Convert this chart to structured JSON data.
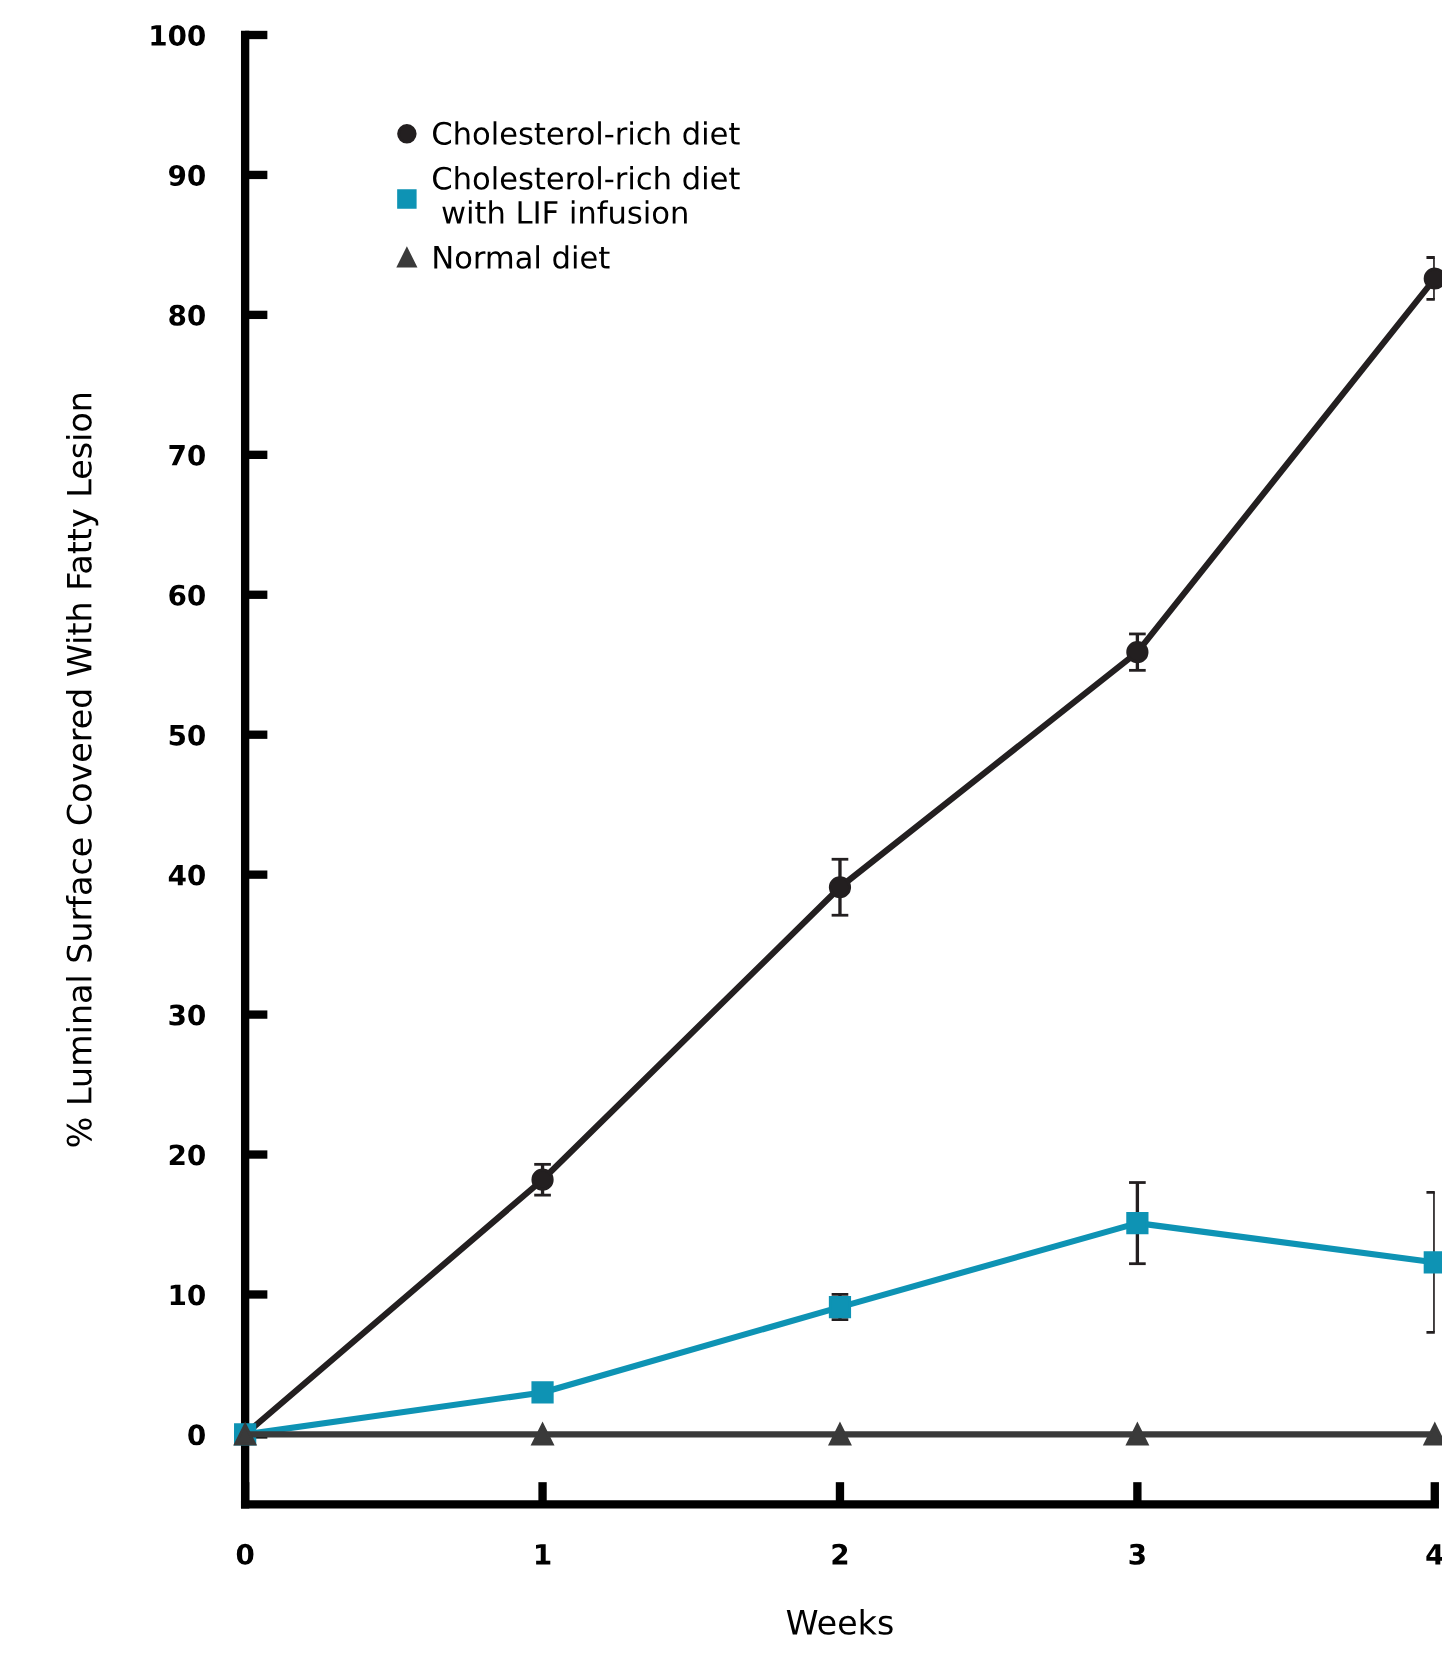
{
  "chart_data": {
    "type": "line",
    "xlabel": "Weeks",
    "ylabel": "% Luminal Surface Covered With Fatty Lesion",
    "x": [
      0,
      1,
      2,
      3,
      4
    ],
    "series": [
      {
        "name": "Cholesterol-rich diet",
        "color": "#231f20",
        "marker": "circle",
        "values": [
          0,
          18.2,
          39.1,
          55.9,
          82.6
        ],
        "errors": [
          null,
          1.1,
          2.0,
          1.3,
          1.5
        ]
      },
      {
        "name": "Cholesterol-rich diet\n with LIF infusion",
        "color": "#0e93b4",
        "marker": "square",
        "values": [
          0,
          3.0,
          9.1,
          15.1,
          12.3
        ],
        "errors": [
          null,
          null,
          0.9,
          2.9,
          5.0
        ]
      },
      {
        "name": "Normal diet",
        "color": "#3a3a3a",
        "marker": "triangle",
        "values": [
          0,
          0,
          0,
          0,
          0
        ]
      }
    ],
    "xlim": [
      0,
      4
    ],
    "ylim": [
      -5,
      100
    ],
    "xticks": [
      0,
      1,
      2,
      3,
      4
    ],
    "yticks": [
      0,
      10,
      20,
      30,
      40,
      50,
      60,
      70,
      80,
      90,
      100
    ],
    "grid": false,
    "legend": "top left",
    "line_style": "solid"
  }
}
